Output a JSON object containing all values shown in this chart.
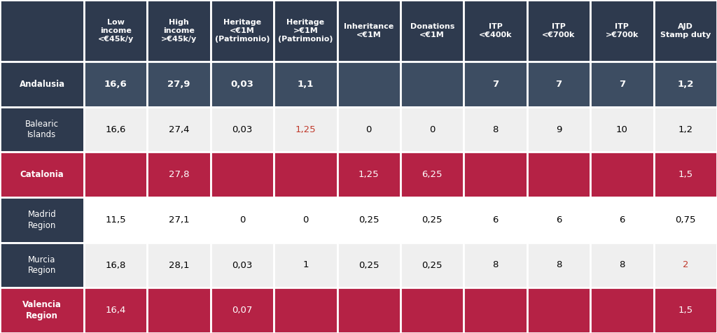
{
  "col_headers": [
    "Low\nincome\n<€45k/y",
    "High\nincome\n>€45k/y",
    "Heritage\n<€1M\n(Patrimonio)",
    "Heritage\n>€1M\n(Patrimonio)",
    "Inheritance\n<€1M",
    "Donations\n<€1M",
    "ITP\n<€400k",
    "ITP\n<€700k",
    "ITP\n>€700k",
    "AJD\nStamp duty"
  ],
  "rows": [
    {
      "label": "Andalusia",
      "values": [
        "16,6",
        "27,9",
        "0,03",
        "1,1",
        "",
        "",
        "7",
        "7",
        "7",
        "1,2"
      ],
      "row_type": "andalusia",
      "text_colors": [
        "white",
        "white",
        "white",
        "white",
        "white",
        "white",
        "white",
        "white",
        "white",
        "white"
      ]
    },
    {
      "label": "Balearic\nIslands",
      "values": [
        "16,6",
        "27,4",
        "0,03",
        "1,25",
        "0",
        "0",
        "8",
        "9",
        "10",
        "1,2"
      ],
      "row_type": "light",
      "text_colors": [
        "black",
        "black",
        "black",
        "#c0392b",
        "black",
        "black",
        "black",
        "black",
        "black",
        "black"
      ]
    },
    {
      "label": "Catalonia",
      "values": [
        "",
        "27,8",
        "",
        "",
        "1,25",
        "6,25",
        "",
        "",
        "",
        "1,5"
      ],
      "row_type": "red",
      "text_colors": [
        "white",
        "white",
        "white",
        "white",
        "white",
        "white",
        "white",
        "white",
        "white",
        "white"
      ]
    },
    {
      "label": "Madrid\nRegion",
      "values": [
        "11,5",
        "27,1",
        "0",
        "0",
        "0,25",
        "0,25",
        "6",
        "6",
        "6",
        "0,75"
      ],
      "row_type": "light",
      "text_colors": [
        "black",
        "black",
        "black",
        "black",
        "black",
        "black",
        "black",
        "black",
        "black",
        "black"
      ]
    },
    {
      "label": "Murcia\nRegion",
      "values": [
        "16,8",
        "28,1",
        "0,03",
        "1",
        "0,25",
        "0,25",
        "8",
        "8",
        "8",
        "2"
      ],
      "row_type": "light",
      "text_colors": [
        "black",
        "black",
        "black",
        "black",
        "black",
        "black",
        "black",
        "black",
        "black",
        "#c0392b"
      ]
    },
    {
      "label": "Valencia\nRegion",
      "values": [
        "16,4",
        "",
        "0,07",
        "",
        "",
        "",
        "",
        "",
        "",
        "1,5"
      ],
      "row_type": "red",
      "text_colors": [
        "white",
        "white",
        "white",
        "white",
        "white",
        "white",
        "white",
        "white",
        "white",
        "white"
      ]
    }
  ],
  "header_bg": "#2e3a4e",
  "andalusia_data_bg": "#3d4d62",
  "andalusia_label_bg": "#2e3a4e",
  "label_bg": "#2e3a4e",
  "light_bg": "#efefef",
  "light_alt_bg": "#ffffff",
  "red_bg": "#b52245",
  "border_color": "#ffffff",
  "header_text": "#ffffff",
  "border_lw": 2.0
}
